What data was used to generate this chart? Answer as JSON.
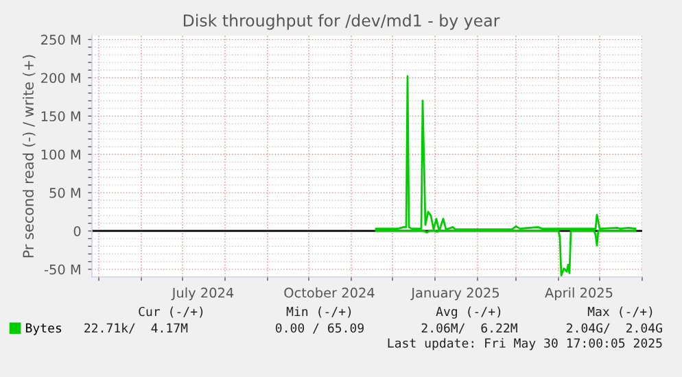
{
  "chart_data": {
    "type": "line",
    "title": "Disk throughput for /dev/md1 - by year",
    "ylabel": "Pr second read (-) / write (+)",
    "x": [
      "2024-11-19",
      "2024-12-05",
      "2024-12-09",
      "2024-12-11",
      "2024-12-12",
      "2024-12-13",
      "2024-12-15",
      "2024-12-22",
      "2024-12-23",
      "2024-12-25",
      "2024-12-27",
      "2024-12-29",
      "2024-12-31",
      "2025-01-02",
      "2025-01-04",
      "2025-01-07",
      "2025-01-09",
      "2025-01-14",
      "2025-01-16",
      "2025-02-26",
      "2025-03-01",
      "2025-03-04",
      "2025-03-17",
      "2025-03-20",
      "2025-04-28",
      "2025-04-29",
      "2025-05-01",
      "2025-05-14",
      "2025-05-16",
      "2025-05-22",
      "2025-05-27"
    ],
    "series": [
      {
        "name": "Bytes",
        "color": "#00cc00",
        "values": [
          3,
          3,
          5,
          5,
          202,
          5,
          3,
          3,
          170,
          8,
          25,
          20,
          2,
          16,
          0,
          16,
          2,
          5,
          2,
          2,
          6,
          3,
          5,
          3,
          3,
          21,
          3,
          4,
          3,
          4,
          3
        ]
      },
      {
        "color": "#00cc00",
        "x": [
          "2024-11-19",
          "2024-12-24",
          "2024-12-26",
          "2024-12-28",
          "2025-01-01",
          "2025-01-02",
          "2025-01-04",
          "2025-04-01",
          "2025-04-02",
          "2025-04-03",
          "2025-04-05",
          "2025-04-07",
          "2025-04-08",
          "2025-04-09",
          "2025-04-10",
          "2025-04-27",
          "2025-04-28",
          "2025-04-29",
          "2025-04-30",
          "2025-05-27"
        ],
        "values": [
          0,
          0,
          -2,
          0,
          0,
          -1,
          0,
          0,
          -8,
          -58,
          -49,
          -53,
          -44,
          -55,
          0,
          0,
          -5,
          -19,
          0,
          0
        ]
      }
    ],
    "xlim": [
      "2024-04-26",
      "2025-06-01"
    ],
    "xticks": [
      {
        "value": "2024-05-01",
        "label": null
      },
      {
        "value": "2024-06-01",
        "label": null
      },
      {
        "value": "2024-07-01",
        "label": null
      },
      {
        "value": "2024-07-16",
        "label": "July 2024"
      },
      {
        "value": "2024-08-01",
        "label": null
      },
      {
        "value": "2024-09-01",
        "label": null
      },
      {
        "value": "2024-10-01",
        "label": null
      },
      {
        "value": "2024-10-16",
        "label": "October 2024"
      },
      {
        "value": "2024-11-01",
        "label": null
      },
      {
        "value": "2024-12-01",
        "label": null
      },
      {
        "value": "2025-01-01",
        "label": null
      },
      {
        "value": "2025-01-16",
        "label": "January 2025"
      },
      {
        "value": "2025-02-01",
        "label": null
      },
      {
        "value": "2025-03-01",
        "label": null
      },
      {
        "value": "2025-04-01",
        "label": null
      },
      {
        "value": "2025-04-16",
        "label": "April 2025"
      },
      {
        "value": "2025-05-01",
        "label": null
      },
      {
        "value": "2025-06-01",
        "label": null
      }
    ],
    "ylim": [
      -60,
      255
    ],
    "yticks": [
      {
        "value": -50,
        "label": "-50 M"
      },
      {
        "value": -40,
        "label": null
      },
      {
        "value": -30,
        "label": null
      },
      {
        "value": -20,
        "label": null
      },
      {
        "value": -10,
        "label": null
      },
      0,
      {
        "value": 10,
        "label": null
      },
      {
        "value": 20,
        "label": null
      },
      {
        "value": 30,
        "label": null
      },
      {
        "value": 40,
        "label": null
      },
      {
        "value": 50,
        "label": "50 M"
      },
      {
        "value": 60,
        "label": null
      },
      {
        "value": 70,
        "label": null
      },
      {
        "value": 80,
        "label": null
      },
      {
        "value": 90,
        "label": null
      },
      {
        "value": 100,
        "label": "100 M"
      },
      {
        "value": 110,
        "label": null
      },
      {
        "value": 120,
        "label": null
      },
      {
        "value": 130,
        "label": null
      },
      {
        "value": 140,
        "label": null
      },
      {
        "value": 150,
        "label": "150 M"
      },
      {
        "value": 160,
        "label": null
      },
      {
        "value": 170,
        "label": null
      },
      {
        "value": 180,
        "label": null
      },
      {
        "value": 190,
        "label": null
      },
      {
        "value": 200,
        "label": "200 M"
      },
      {
        "value": 210,
        "label": null
      },
      {
        "value": 220,
        "label": null
      },
      {
        "value": 230,
        "label": null
      },
      {
        "value": 240,
        "label": null
      },
      {
        "value": 250,
        "label": "250 M"
      }
    ],
    "ref_lines": [
      {
        "axis": "y",
        "value": 0,
        "color": "#000000"
      }
    ],
    "grid": true,
    "legend": "bottom left",
    "annotations": [
      "Cur (-/+)",
      "Min (-/+)",
      "Avg (-/+)",
      "Max (-/+)",
      "22.71k/  4.17M",
      "0.00 / 65.09",
      "2.06M/  6.22M",
      "2.04G/  2.04G",
      "Last update: Fri May 30 17:00:05 2025"
    ]
  }
}
